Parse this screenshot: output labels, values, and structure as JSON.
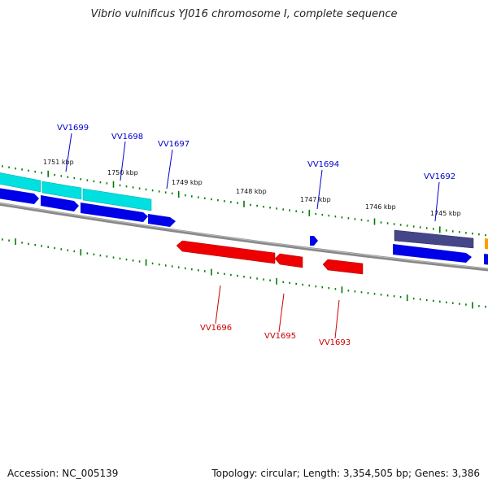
{
  "title": "Vibrio vulnificus YJ016 chromosome I, complete sequence",
  "accession": "Accession: NC_005139",
  "summary": "Topology: circular; Length: 3,354,505 bp; Genes: 3,386",
  "colors": {
    "backbone": "#808080",
    "tick": "#007a00",
    "gene_plus": "#0000ee",
    "gene_minus": "#ee0000",
    "cds_cyan": "#00e5e5",
    "cds_slate": "#4a4a8c",
    "orange": "#ff9900",
    "label_plus": "#0000cc",
    "label_minus": "#cc0000"
  },
  "kbp_labels": [
    "1751 kbp",
    "1750 kbp",
    "1749 kbp",
    "1748 kbp",
    "1747 kbp",
    "1746 kbp",
    "1745 kbp"
  ],
  "gene_labels_top": [
    "VV1699",
    "VV1698",
    "VV1697",
    "VV1694",
    "VV1692"
  ],
  "gene_labels_bottom": [
    "VV1696",
    "VV1695",
    "VV1693"
  ]
}
